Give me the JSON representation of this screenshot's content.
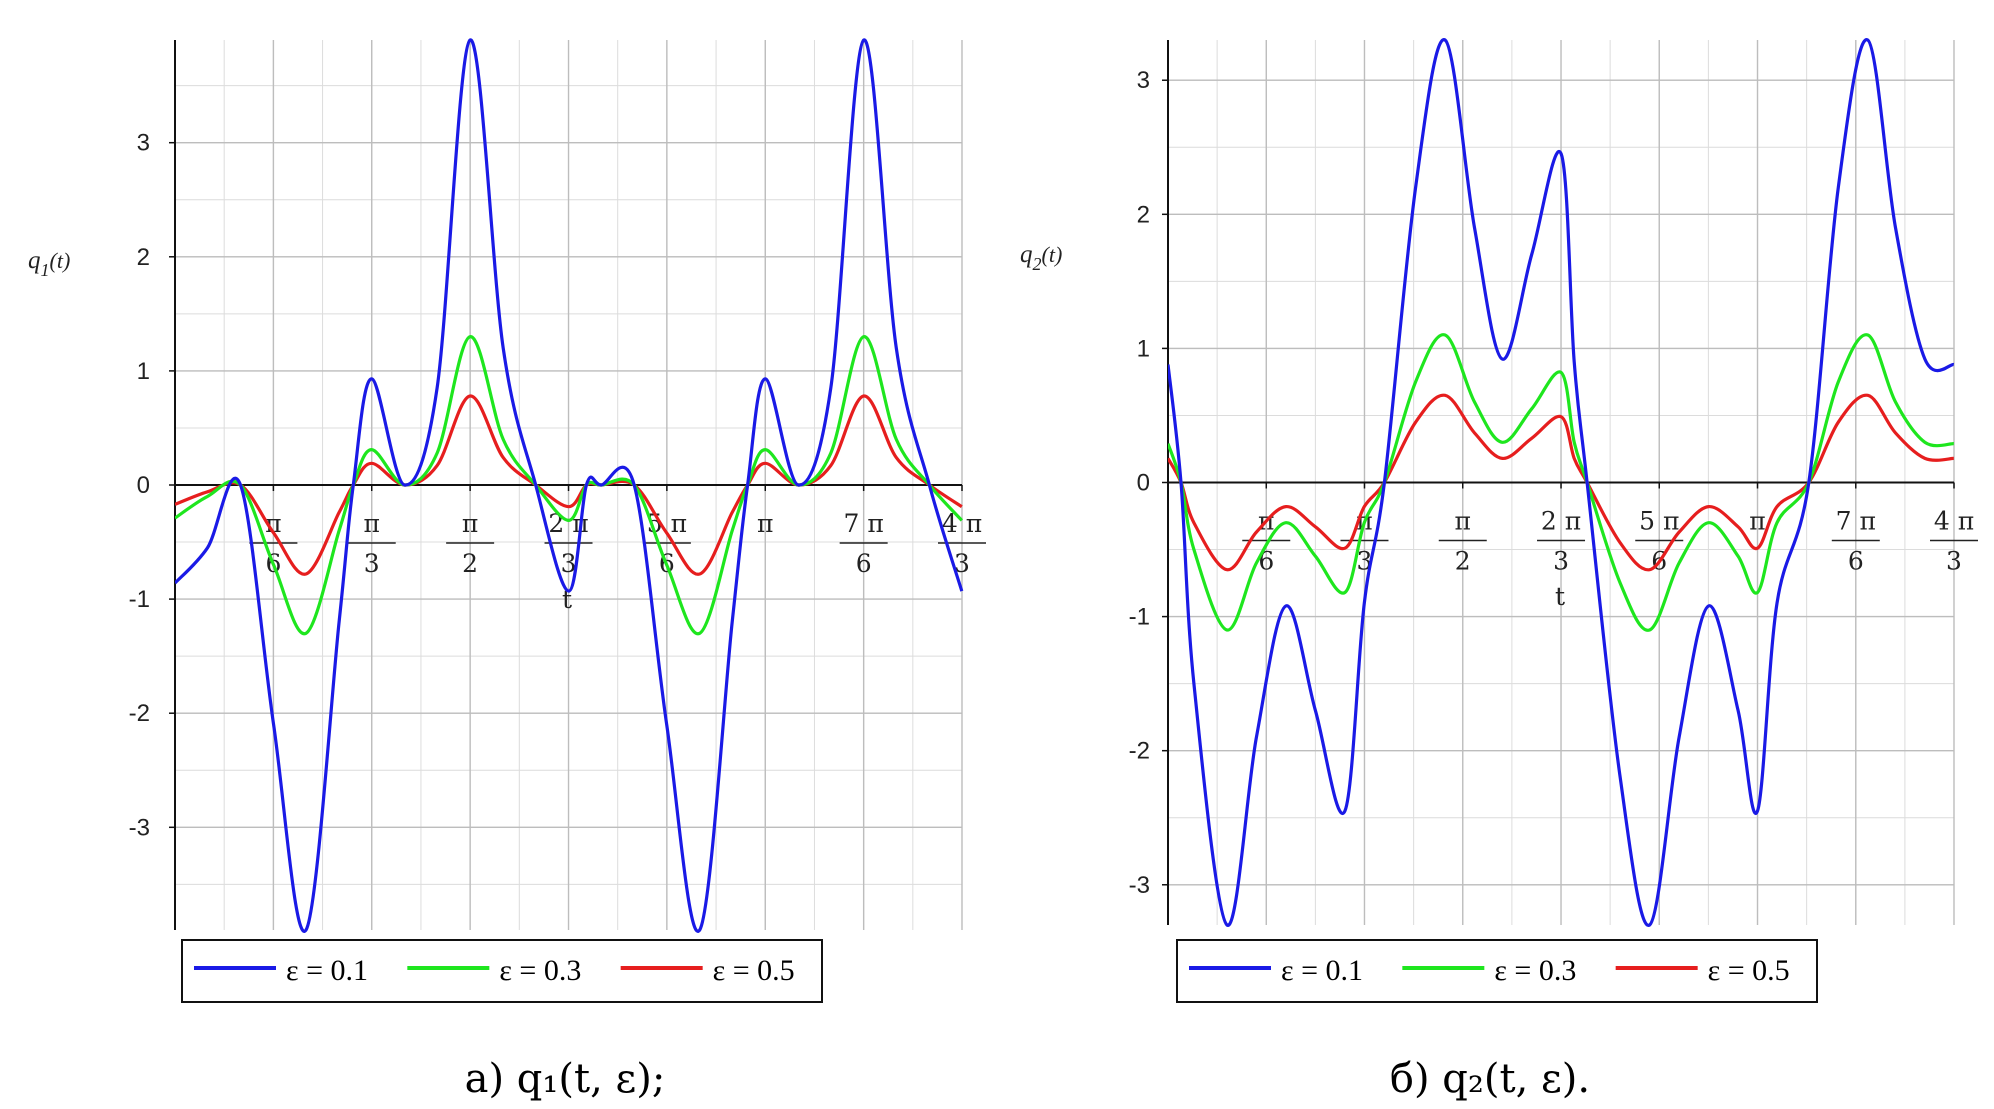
{
  "chart_data": [
    {
      "type": "line",
      "panel": "left",
      "ylabel_base": "q",
      "ylabel_sub": "1",
      "ylabel_arg": "(t)",
      "xlabel": "t",
      "xlim_pi": [
        0,
        1.3333
      ],
      "ylim": [
        -3.9,
        3.9
      ],
      "y_ticks": [
        3,
        2,
        1,
        0,
        -1,
        -2,
        -3
      ],
      "y_tick_labels": [
        "3",
        "2",
        "1",
        "0",
        "-1",
        "-2",
        "-3"
      ],
      "x_ticks_pi": [
        0.1667,
        0.3333,
        0.5,
        0.6667,
        0.8333,
        1.0,
        1.1667,
        1.3333
      ],
      "x_tick_labels": [
        {
          "num": "π",
          "den": "6"
        },
        {
          "num": "π",
          "den": "3"
        },
        {
          "num": "π",
          "den": "2"
        },
        {
          "num": "2 π",
          "den": "3"
        },
        {
          "num": "5 π",
          "den": "6"
        },
        {
          "num": "π",
          "den": ""
        },
        {
          "num": "7 π",
          "den": "6"
        },
        {
          "num": "4 π",
          "den": "3"
        }
      ],
      "grid": true,
      "legend_position": "bottom",
      "series": [
        {
          "name": "ε = 0.1",
          "color": "#1a1ae6",
          "x_pi": [
            0,
            0.055,
            0.111,
            0.167,
            0.222,
            0.278,
            0.302,
            0.333,
            0.389,
            0.444,
            0.5,
            0.556,
            0.611,
            0.667,
            0.697,
            0.722,
            0.778,
            0.833,
            0.889,
            0.944,
            0.97,
            1.0,
            1.056,
            1.111,
            1.167,
            1.222,
            1.278,
            1.333
          ],
          "values": [
            -0.86,
            -0.55,
            0.0,
            -2.1,
            -3.9,
            -1.2,
            0.0,
            0.93,
            0.0,
            0.85,
            3.9,
            1.2,
            0.0,
            -0.93,
            0.0,
            0.0,
            0.0,
            -2.1,
            -3.9,
            -1.2,
            0.0,
            0.93,
            0.0,
            0.85,
            3.9,
            1.2,
            0.0,
            -0.93
          ]
        },
        {
          "name": "ε = 0.3",
          "color": "#1ee61e",
          "x_pi": [
            0,
            0.055,
            0.111,
            0.167,
            0.222,
            0.278,
            0.302,
            0.333,
            0.389,
            0.444,
            0.5,
            0.556,
            0.611,
            0.667,
            0.697,
            0.722,
            0.778,
            0.833,
            0.889,
            0.944,
            0.97,
            1.0,
            1.056,
            1.111,
            1.167,
            1.222,
            1.278,
            1.333
          ],
          "values": [
            -0.29,
            -0.1,
            0.0,
            -0.7,
            -1.3,
            -0.4,
            0.0,
            0.31,
            0.0,
            0.28,
            1.3,
            0.4,
            0.0,
            -0.31,
            0.0,
            0.0,
            0.0,
            -0.7,
            -1.3,
            -0.4,
            0.0,
            0.31,
            0.0,
            0.28,
            1.3,
            0.4,
            0.0,
            -0.31
          ]
        },
        {
          "name": "ε = 0.5",
          "color": "#e61e1e",
          "x_pi": [
            0,
            0.055,
            0.111,
            0.167,
            0.222,
            0.278,
            0.302,
            0.333,
            0.389,
            0.444,
            0.5,
            0.556,
            0.611,
            0.667,
            0.697,
            0.722,
            0.778,
            0.833,
            0.889,
            0.944,
            0.97,
            1.0,
            1.056,
            1.111,
            1.167,
            1.222,
            1.278,
            1.333
          ],
          "values": [
            -0.17,
            -0.06,
            0.0,
            -0.42,
            -0.78,
            -0.24,
            0.0,
            0.19,
            0.0,
            0.17,
            0.78,
            0.24,
            0.0,
            -0.19,
            0.0,
            0.0,
            0.0,
            -0.42,
            -0.78,
            -0.24,
            0.0,
            0.19,
            0.0,
            0.17,
            0.78,
            0.24,
            0.0,
            -0.19
          ]
        }
      ]
    },
    {
      "type": "line",
      "panel": "right",
      "ylabel_base": "q",
      "ylabel_sub": "2",
      "ylabel_arg": "(t)",
      "xlabel": "t",
      "xlim_pi": [
        0,
        1.3333
      ],
      "ylim": [
        -3.3,
        3.3
      ],
      "y_ticks": [
        3,
        2,
        1,
        0,
        -1,
        -2,
        -3
      ],
      "y_tick_labels": [
        "3",
        "2",
        "1",
        "0",
        "-1",
        "-2",
        "-3"
      ],
      "x_ticks_pi": [
        0.1667,
        0.3333,
        0.5,
        0.6667,
        0.8333,
        1.0,
        1.1667,
        1.3333
      ],
      "x_tick_labels": [
        {
          "num": "π",
          "den": "6"
        },
        {
          "num": "π",
          "den": "3"
        },
        {
          "num": "π",
          "den": "2"
        },
        {
          "num": "2 π",
          "den": "3"
        },
        {
          "num": "5 π",
          "den": "6"
        },
        {
          "num": "π",
          "den": ""
        },
        {
          "num": "7 π",
          "den": "6"
        },
        {
          "num": "4 π",
          "den": "3"
        }
      ],
      "grid": true,
      "legend_position": "bottom",
      "series": [
        {
          "name": "ε = 0.1",
          "color": "#1a1ae6",
          "x_pi": [
            0,
            0.022,
            0.044,
            0.1,
            0.15,
            0.2,
            0.25,
            0.3,
            0.333,
            0.367,
            0.42,
            0.47,
            0.52,
            0.567,
            0.617,
            0.667,
            0.689,
            0.711,
            0.767,
            0.817,
            0.867,
            0.917,
            0.967,
            1.0,
            1.033,
            1.087,
            1.137,
            1.187,
            1.234,
            1.284,
            1.333
          ],
          "values": [
            0.88,
            0.0,
            -1.5,
            -3.3,
            -1.9,
            -0.92,
            -1.7,
            -2.45,
            -0.9,
            0.0,
            2.2,
            3.3,
            1.9,
            0.92,
            1.7,
            2.45,
            0.9,
            0.0,
            -2.2,
            -3.3,
            -1.9,
            -0.92,
            -1.7,
            -2.45,
            -0.9,
            0.0,
            2.2,
            3.3,
            1.9,
            0.92,
            0.88
          ]
        },
        {
          "name": "ε = 0.3",
          "color": "#1ee61e",
          "x_pi": [
            0,
            0.022,
            0.044,
            0.1,
            0.15,
            0.2,
            0.25,
            0.3,
            0.333,
            0.367,
            0.42,
            0.47,
            0.52,
            0.567,
            0.617,
            0.667,
            0.689,
            0.711,
            0.767,
            0.817,
            0.867,
            0.917,
            0.967,
            1.0,
            1.033,
            1.087,
            1.137,
            1.187,
            1.234,
            1.284,
            1.333
          ],
          "values": [
            0.29,
            0.0,
            -0.5,
            -1.1,
            -0.6,
            -0.3,
            -0.55,
            -0.82,
            -0.3,
            0.0,
            0.75,
            1.1,
            0.6,
            0.3,
            0.55,
            0.82,
            0.3,
            0.0,
            -0.75,
            -1.1,
            -0.6,
            -0.3,
            -0.55,
            -0.82,
            -0.3,
            0.0,
            0.75,
            1.1,
            0.6,
            0.3,
            0.29
          ]
        },
        {
          "name": "ε = 0.5",
          "color": "#e61e1e",
          "x_pi": [
            0,
            0.022,
            0.044,
            0.1,
            0.15,
            0.2,
            0.25,
            0.3,
            0.333,
            0.367,
            0.42,
            0.47,
            0.52,
            0.567,
            0.617,
            0.667,
            0.689,
            0.711,
            0.767,
            0.817,
            0.867,
            0.917,
            0.967,
            1.0,
            1.033,
            1.087,
            1.137,
            1.187,
            1.234,
            1.284,
            1.333
          ],
          "values": [
            0.18,
            0.0,
            -0.3,
            -0.65,
            -0.37,
            -0.18,
            -0.33,
            -0.49,
            -0.18,
            0.0,
            0.45,
            0.65,
            0.37,
            0.18,
            0.33,
            0.49,
            0.18,
            0.0,
            -0.45,
            -0.65,
            -0.37,
            -0.18,
            -0.33,
            -0.49,
            -0.18,
            0.0,
            0.45,
            0.65,
            0.37,
            0.18,
            0.18
          ]
        }
      ]
    }
  ],
  "captions": {
    "left": "а) q₁(t, ε);",
    "right": "б) q₂(t, ε)."
  }
}
